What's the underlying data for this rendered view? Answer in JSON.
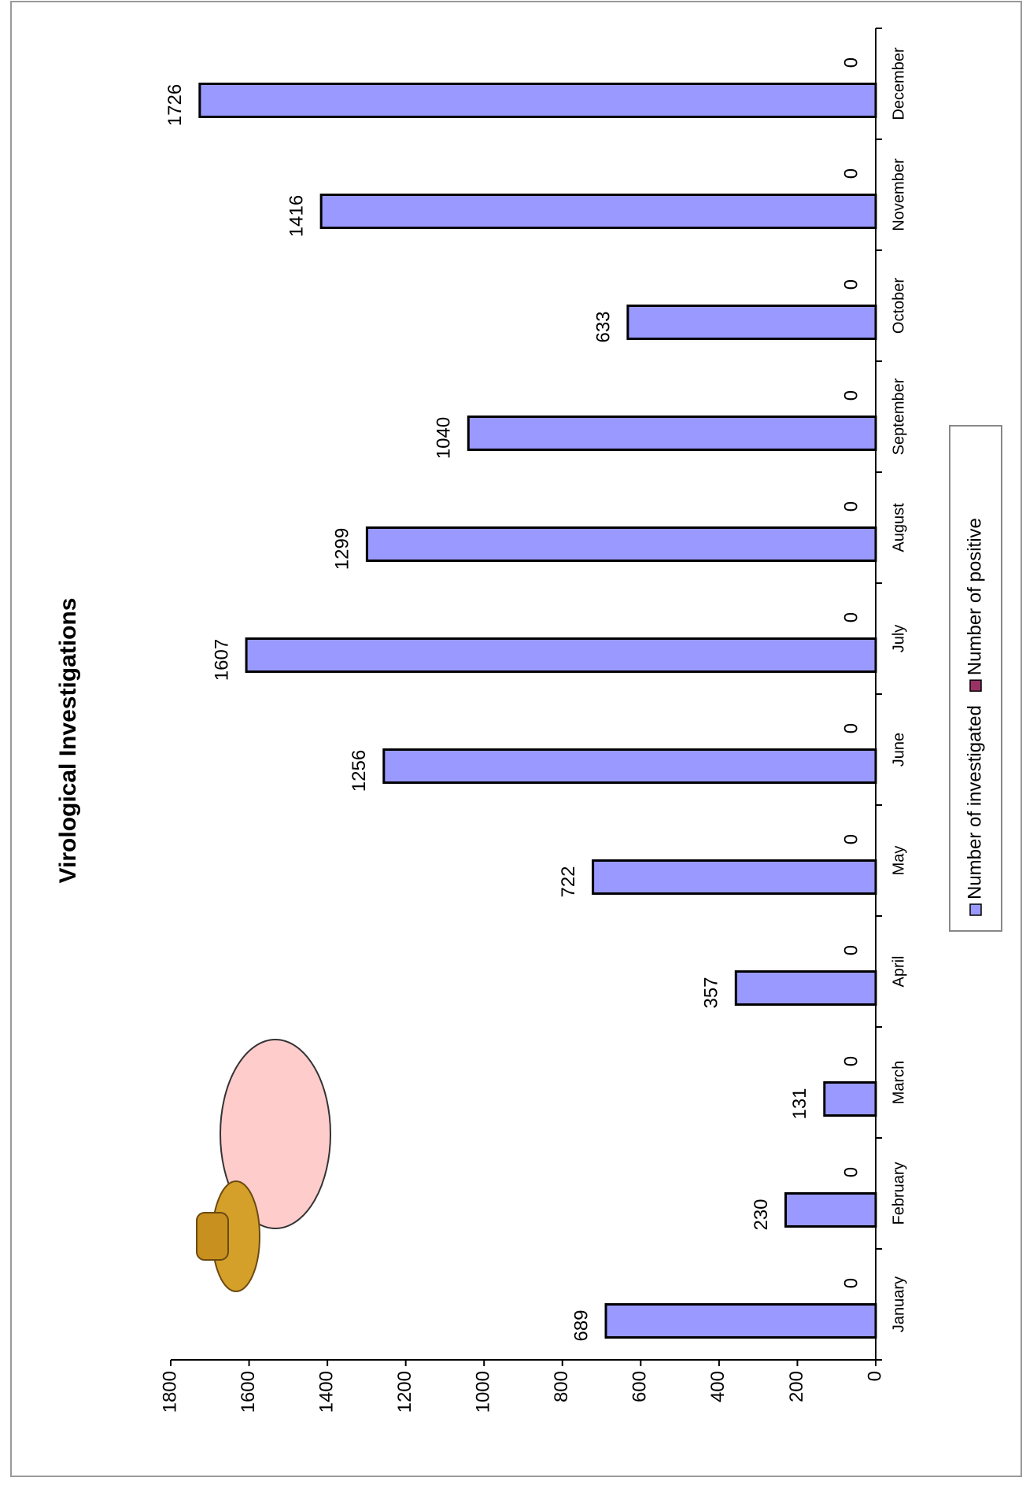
{
  "chart_data": {
    "type": "bar",
    "title": "Virological Investigations",
    "categories": [
      "January",
      "February",
      "March",
      "April",
      "May",
      "June",
      "July",
      "August",
      "September",
      "October",
      "November",
      "December"
    ],
    "series": [
      {
        "name": "Number of investigated",
        "color": "#9999ff",
        "values": [
          689,
          230,
          131,
          357,
          722,
          1256,
          1607,
          1299,
          1040,
          633,
          1416,
          1726
        ]
      },
      {
        "name": "Number of positive",
        "color": "#993366",
        "values": [
          0,
          0,
          0,
          0,
          0,
          0,
          0,
          0,
          0,
          0,
          0,
          0
        ]
      }
    ],
    "ylim": [
      0,
      1800
    ],
    "yticks": [
      0,
      200,
      400,
      600,
      800,
      1000,
      1200,
      1400,
      1600,
      1800
    ],
    "grid": false
  }
}
